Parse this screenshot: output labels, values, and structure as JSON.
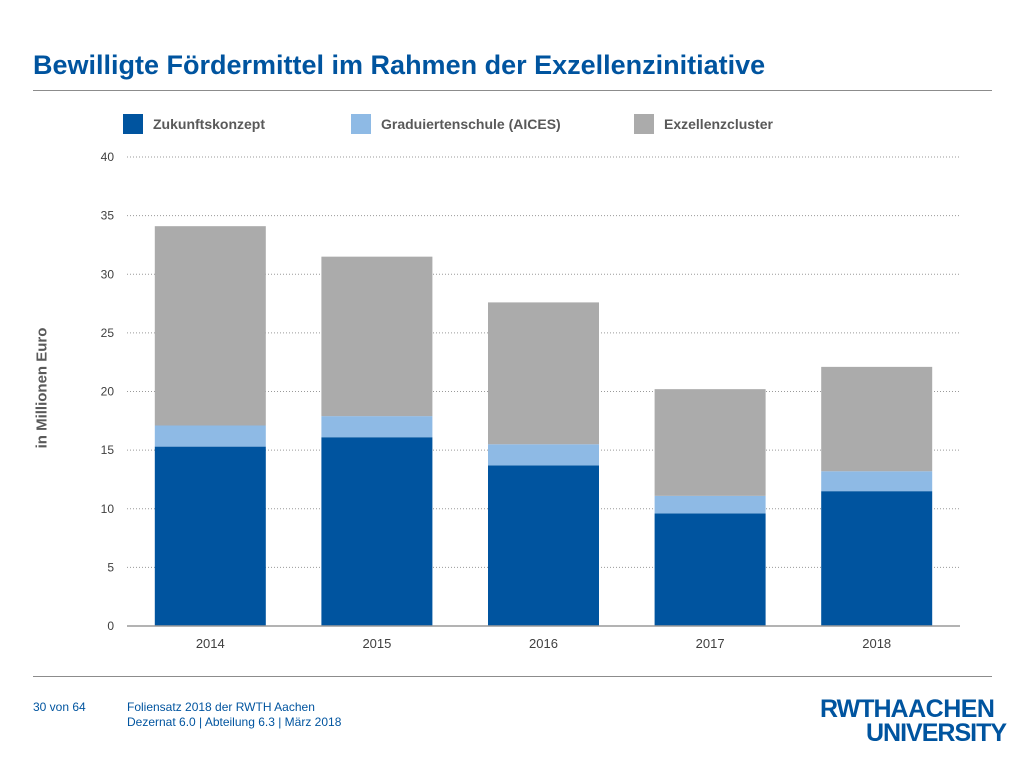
{
  "page": {
    "title": "Bewilligte Fördermittel im Rahmen der Exzellenzinitiative",
    "footer_page": "30 von 64",
    "footer_line1": "Foliensatz 2018 der RWTH Aachen",
    "footer_line2": "Dezernat 6.0 | Abteilung 6.3 | März 2018",
    "logo_line1_part1": "RWTH",
    "logo_line1_part2": "AACHEN",
    "logo_line2": "UNIVERSITY"
  },
  "chart_data": {
    "type": "bar",
    "stacked": true,
    "title": "",
    "xlabel": "",
    "ylabel": "in Millionen Euro",
    "categories": [
      "2014",
      "2015",
      "2016",
      "2017",
      "2018"
    ],
    "ylim": [
      0,
      40
    ],
    "yticks": [
      0,
      5,
      10,
      15,
      20,
      25,
      30,
      35,
      40
    ],
    "grid": true,
    "legend_position": "top",
    "series": [
      {
        "name": "Zukunftskonzept",
        "color": "#00549f",
        "values": [
          15.3,
          16.1,
          13.7,
          9.6,
          11.5
        ]
      },
      {
        "name": "Graduiertenschule (AICES)",
        "color": "#8ebae5",
        "values": [
          1.8,
          1.8,
          1.8,
          1.5,
          1.7
        ]
      },
      {
        "name": "Exzellenzcluster",
        "color": "#ababab",
        "values": [
          17.0,
          13.6,
          12.1,
          9.1,
          8.9
        ]
      }
    ]
  }
}
